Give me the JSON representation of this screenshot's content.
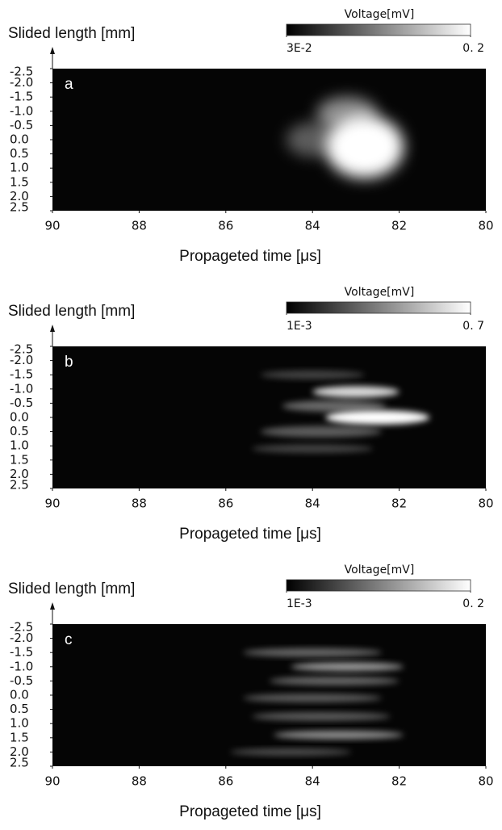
{
  "chart_data": [
    {
      "type": "heatmap",
      "panel_label": "a",
      "ylabel": "Slided length [mm]",
      "xlabel": "Propageted time [μs]",
      "colorbar_title": "Voltage[mV]",
      "clim": [
        0.03,
        0.2
      ],
      "cticks": [
        {
          "value": 0.03,
          "label": "3E-2"
        },
        {
          "value": 0.2,
          "label": "0. 2"
        }
      ],
      "xlim": [
        90,
        80
      ],
      "xticks": [
        90,
        88,
        86,
        84,
        82,
        80
      ],
      "ylim": [
        -2.5,
        2.5
      ],
      "yticks": [
        -2.5,
        {
          "value": -2,
          "label": "-2.0"
        },
        -1.5,
        {
          "value": -1,
          "label": "-1.0"
        },
        -0.5,
        {
          "value": 0,
          "label": "0.0"
        },
        0.5,
        {
          "value": 1,
          "label": "1.0"
        },
        1.5,
        {
          "value": 2,
          "label": "2.0"
        },
        2.5
      ]
    },
    {
      "type": "heatmap",
      "panel_label": "b",
      "ylabel": "Slided length [mm]",
      "xlabel": "Propageted time [μs]",
      "colorbar_title": "Voltage[mV]",
      "clim": [
        0.001,
        0.7
      ],
      "cticks": [
        {
          "value": 0.001,
          "label": "1E-3"
        },
        {
          "value": 0.7,
          "label": "0. 7"
        }
      ],
      "xlim": [
        90,
        80
      ],
      "xticks": [
        90,
        88,
        86,
        84,
        82,
        80
      ],
      "ylim": [
        -2.5,
        2.5
      ],
      "yticks": [
        -2.5,
        {
          "value": -2,
          "label": "-2.0"
        },
        -1.5,
        {
          "value": -1,
          "label": "-1.0"
        },
        -0.5,
        {
          "value": 0,
          "label": "0.0"
        },
        0.5,
        {
          "value": 1,
          "label": "1.0"
        },
        1.5,
        {
          "value": 2,
          "label": "2.0"
        },
        2.5
      ]
    },
    {
      "type": "heatmap",
      "panel_label": "c",
      "ylabel": "Slided length [mm]",
      "xlabel": "Propageted time [μs]",
      "colorbar_title": "Voltage[mV]",
      "clim": [
        0.001,
        0.2
      ],
      "cticks": [
        {
          "value": 0.001,
          "label": "1E-3"
        },
        {
          "value": 0.2,
          "label": "0. 2"
        }
      ],
      "xlim": [
        90,
        80
      ],
      "xticks": [
        90,
        88,
        86,
        84,
        82,
        80
      ],
      "ylim": [
        -2.5,
        2.5
      ],
      "yticks": [
        -2.5,
        {
          "value": -2,
          "label": "-2.0"
        },
        -1.5,
        {
          "value": -1,
          "label": "-1.0"
        },
        -0.5,
        {
          "value": 0,
          "label": "0.0"
        },
        0.5,
        {
          "value": 1,
          "label": "1.0"
        },
        1.5,
        {
          "value": 2,
          "label": "2.0"
        },
        2.5
      ]
    }
  ]
}
